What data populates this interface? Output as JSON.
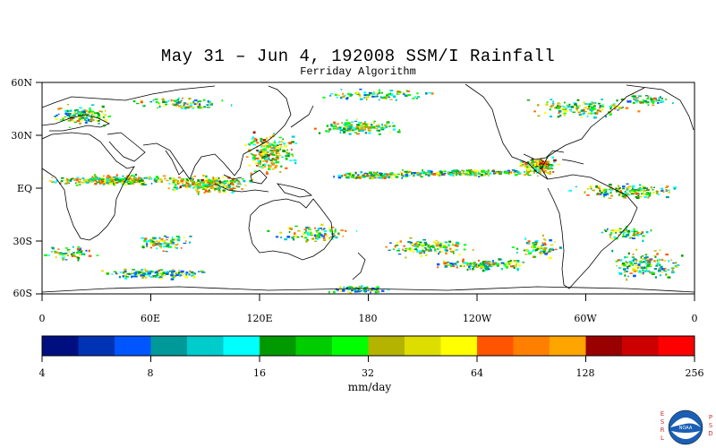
{
  "title": "May 31 – Jun 4, 192008 SSM/I Rainfall",
  "subtitle": "Ferriday Algorithm",
  "lat_labels": [
    "60N",
    "30N",
    "EQ",
    "30S",
    "60S"
  ],
  "lon_labels": [
    "0",
    "60E",
    "120E",
    "180",
    "120W",
    "60W",
    "0"
  ],
  "colorbar": {
    "tick_labels": [
      "4",
      "8",
      "16",
      "32",
      "64",
      "128",
      "256"
    ],
    "colors": [
      "#000f80",
      "#0033b3",
      "#0055ff",
      "#009999",
      "#00cccc",
      "#00ffff",
      "#009900",
      "#00cc00",
      "#00ff00",
      "#b3b300",
      "#dddd00",
      "#ffff00",
      "#ff5500",
      "#ff8000",
      "#ffa500",
      "#990000",
      "#cc0000",
      "#ff0000"
    ]
  },
  "units": "mm/day",
  "logo": {
    "name": "NOAA",
    "left_text": "ESRL",
    "right_text": "PSD"
  }
}
